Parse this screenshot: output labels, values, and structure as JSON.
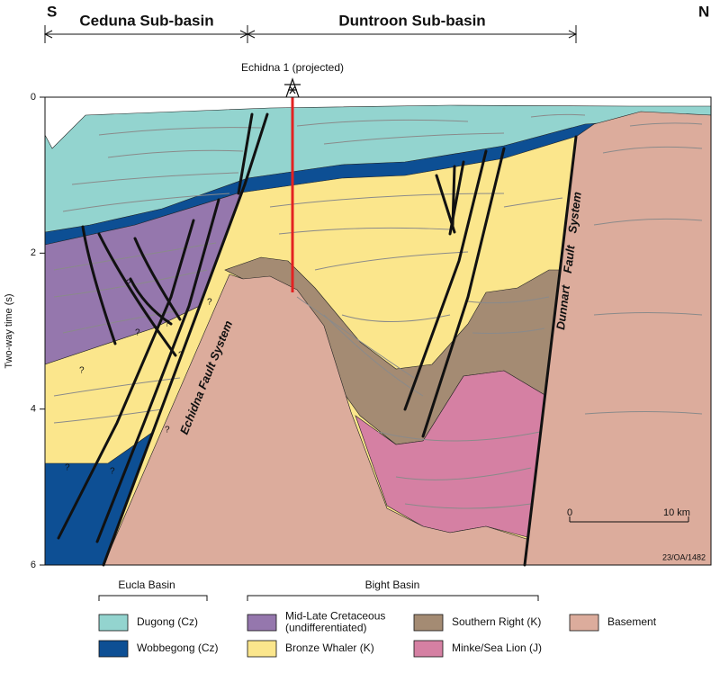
{
  "header": {
    "south": "S",
    "north": "N",
    "sub_basins": [
      "Ceduna Sub-basin",
      "Duntroon Sub-basin"
    ]
  },
  "section": {
    "well": "Echidna 1 (projected)",
    "axis_label": "Two-way time (s)",
    "axis_ticks": [
      0,
      2,
      4,
      6
    ],
    "faults": [
      "Echidna Fault System",
      "Dunnart Fault System"
    ],
    "question_marks": [
      "?",
      "?",
      "?",
      "?",
      "?",
      "?",
      "?",
      "?",
      "?"
    ],
    "scale_bar": [
      "0",
      "10 km"
    ],
    "figure_id": "23/OA/1482"
  },
  "legend": {
    "groups": [
      "Eucla Basin",
      "Bight Basin"
    ],
    "items": [
      {
        "label": [
          "Dugong (Cz)"
        ],
        "color": "#93d4cf"
      },
      {
        "label": [
          "Wobbegong (Cz)"
        ],
        "color": "#0d4f94"
      },
      {
        "label": [
          "Mid-Late Cretaceous",
          "(undifferentiated)"
        ],
        "color": "#9577ad"
      },
      {
        "label": [
          "Bronze Whaler (K)"
        ],
        "color": "#fbe68c"
      },
      {
        "label": [
          "Southern Right (K)"
        ],
        "color": "#a48b73"
      },
      {
        "label": [
          "Minke/Sea Lion (J)"
        ],
        "color": "#d580a3"
      },
      {
        "label": [
          "Basement"
        ],
        "color": "#dcac9c"
      }
    ]
  }
}
